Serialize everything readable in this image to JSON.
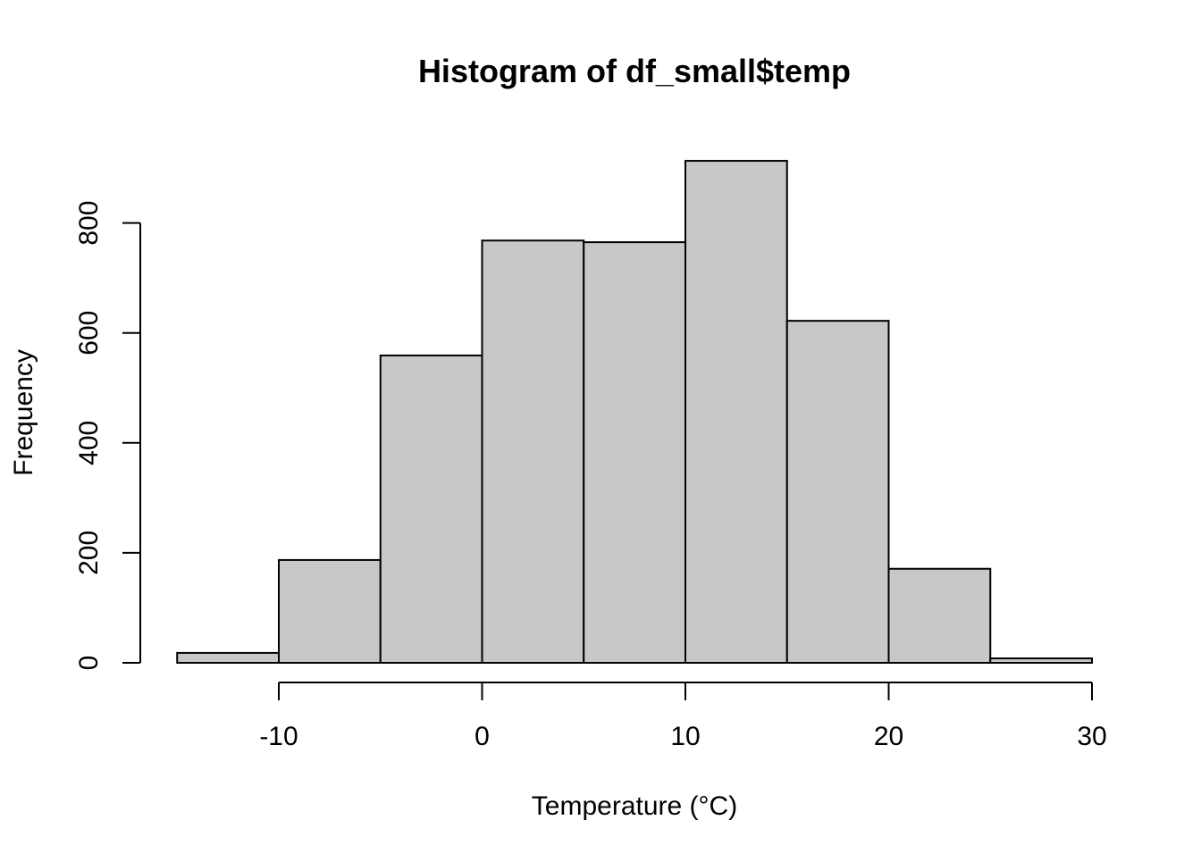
{
  "chart_data": {
    "type": "bar",
    "title": "Histogram of df_small$temp",
    "xlabel": "Temperature (°C)",
    "ylabel": "Frequency",
    "bins": [
      {
        "from": -15,
        "to": -10,
        "count": 18
      },
      {
        "from": -10,
        "to": -5,
        "count": 187
      },
      {
        "from": -5,
        "to": 0,
        "count": 559
      },
      {
        "from": 0,
        "to": 5,
        "count": 768
      },
      {
        "from": 5,
        "to": 10,
        "count": 765
      },
      {
        "from": 10,
        "to": 15,
        "count": 913
      },
      {
        "from": 15,
        "to": 20,
        "count": 622
      },
      {
        "from": 20,
        "to": 25,
        "count": 171
      },
      {
        "from": 25,
        "to": 30,
        "count": 8
      }
    ],
    "xticks": [
      -10,
      0,
      10,
      20,
      30
    ],
    "yticks": [
      0,
      200,
      400,
      600,
      800
    ],
    "xlim": [
      -15,
      30
    ],
    "ylim": [
      0,
      913
    ],
    "bar_fill": "#c8c8c8",
    "bar_stroke": "#000000",
    "grid": false,
    "legend": "none"
  }
}
